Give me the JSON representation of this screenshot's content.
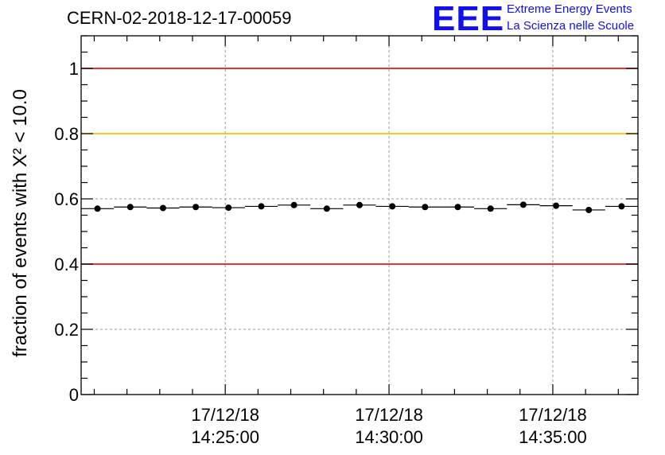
{
  "header": {
    "run_title": "CERN-02-2018-12-17-00059",
    "logo_mark": "EEE",
    "logo_line1": "Extreme Energy Events",
    "logo_line2": "La Scienza nelle Scuole"
  },
  "chart_data": {
    "type": "scatter",
    "title": "CERN-02-2018-12-17-00059",
    "xlabel": "",
    "ylabel": "fraction of events with Χ² < 10.0",
    "ylim": [
      0,
      1.1
    ],
    "xlim_minutes": [
      16.6,
      33.6
    ],
    "yticks": [
      0,
      0.2,
      0.4,
      0.6,
      0.8,
      1
    ],
    "ytick_labels": [
      "0",
      "0.2",
      "0.4",
      "0.6",
      "0.8",
      "1"
    ],
    "xticks": [
      {
        "minute": 21,
        "label_date": "17/12/18",
        "label_time": "14:25:00"
      },
      {
        "minute": 26,
        "label_date": "17/12/18",
        "label_time": "14:30:00"
      },
      {
        "minute": 31,
        "label_date": "17/12/18",
        "label_time": "14:35:00"
      }
    ],
    "x_minor_step": 1,
    "grid": true,
    "reference_lines": [
      {
        "y": 1.0,
        "color": "#e8141c"
      },
      {
        "y": 0.8,
        "color": "#ffc000"
      },
      {
        "y": 0.4,
        "color": "#e8141c"
      }
    ],
    "series": [
      {
        "x": [
          17.1,
          18.1,
          19.1,
          20.1,
          21.1,
          22.1,
          23.1,
          24.1,
          25.1,
          26.1,
          27.1,
          28.1,
          29.1,
          30.1,
          31.1,
          32.1,
          33.1
        ],
        "xerr": 0.5,
        "values": [
          0.57,
          0.575,
          0.572,
          0.575,
          0.573,
          0.577,
          0.581,
          0.57,
          0.581,
          0.577,
          0.575,
          0.575,
          0.57,
          0.582,
          0.579,
          0.566,
          0.577
        ],
        "color": "#000000"
      }
    ]
  }
}
